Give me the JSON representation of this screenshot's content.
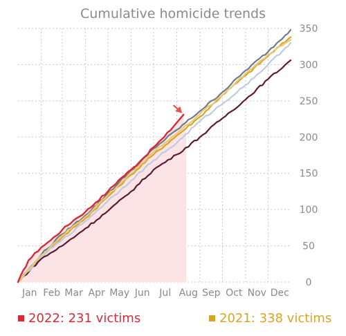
{
  "chart_data": {
    "type": "line",
    "title": "Cumulative homicide trends",
    "xlabel": "",
    "ylabel": "",
    "x_categories": [
      "Jan",
      "Feb",
      "Mar",
      "Apr",
      "May",
      "Jun",
      "Jul",
      "Aug",
      "Sep",
      "Oct",
      "Nov",
      "Dec"
    ],
    "x_unit": "day of year",
    "xlim": [
      1,
      365
    ],
    "ylim": [
      0,
      350
    ],
    "yticks": [
      0,
      50,
      100,
      150,
      200,
      250,
      300,
      350
    ],
    "y_axis_side": "right",
    "grid": true,
    "series": [
      {
        "name": "2022",
        "color": "#d62b35",
        "highlight": true,
        "fill": "#fbe3e6",
        "x": [
          1,
          15,
          32,
          45,
          60,
          75,
          91,
          105,
          121,
          135,
          152,
          166,
          182,
          196,
          213,
          222
        ],
        "y": [
          0,
          30,
          48,
          58,
          72,
          85,
          97,
          110,
          125,
          140,
          155,
          168,
          186,
          200,
          220,
          231
        ]
      },
      {
        "name": "2021",
        "color": "#d9a520",
        "x": [
          1,
          32,
          60,
          91,
          121,
          152,
          182,
          213,
          244,
          274,
          305,
          335,
          365
        ],
        "y": [
          0,
          36,
          62,
          88,
          118,
          148,
          176,
          202,
          228,
          258,
          285,
          312,
          338
        ]
      },
      {
        "name": "",
        "color": "#6e7c8a",
        "x": [
          1,
          32,
          60,
          91,
          121,
          152,
          182,
          213,
          244,
          274,
          305,
          335,
          365
        ],
        "y": [
          0,
          38,
          66,
          92,
          122,
          154,
          184,
          210,
          236,
          262,
          292,
          318,
          348
        ]
      },
      {
        "name": "",
        "color": "#5c1a33",
        "x": [
          1,
          32,
          60,
          91,
          121,
          152,
          182,
          213,
          244,
          274,
          305,
          335,
          365
        ],
        "y": [
          0,
          32,
          50,
          74,
          98,
          125,
          155,
          176,
          200,
          226,
          252,
          280,
          306
        ]
      },
      {
        "name": "",
        "color": "#bfcbe3",
        "x": [
          1,
          32,
          60,
          91,
          121,
          152,
          182,
          213,
          244,
          274,
          305,
          335,
          365
        ],
        "y": [
          0,
          35,
          58,
          84,
          112,
          140,
          168,
          192,
          222,
          246,
          272,
          300,
          330
        ]
      },
      {
        "name": "",
        "color": "#e8c87a",
        "x": [
          1,
          32,
          60,
          91,
          121,
          152,
          182,
          213,
          244,
          274,
          305,
          335,
          365
        ],
        "y": [
          0,
          37,
          64,
          90,
          120,
          150,
          180,
          205,
          232,
          258,
          288,
          314,
          334
        ]
      }
    ],
    "annotations": [
      {
        "type": "arrow",
        "target_series": "2022",
        "color": "#e8514a"
      }
    ],
    "legend": [
      {
        "label": "2022: 231 victims",
        "color": "#d62b35",
        "position": "bottom-left"
      },
      {
        "label": "2021: 338 victims",
        "color": "#d9a520",
        "position": "bottom-right"
      }
    ]
  }
}
